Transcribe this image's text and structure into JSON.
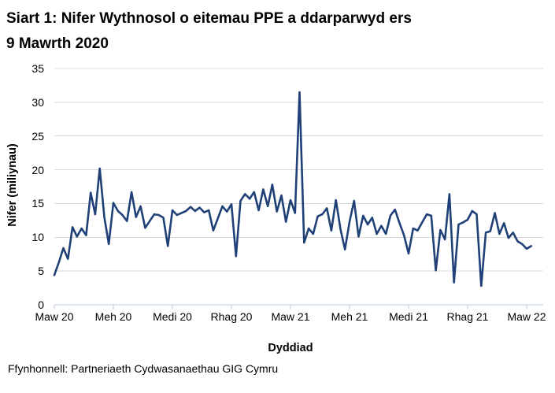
{
  "title_line1": "Siart 1: Nifer Wythnosol o eitemau PPE a ddarparwyd ers",
  "title_line2": "9 Mawrth 2020",
  "footer": "Ffynhonnell: Partneriaeth Cydwasanaethau GIG Cymru",
  "chart_data": {
    "type": "line",
    "title": "Siart 1: Nifer Wythnosol o eitemau PPE a ddarparwyd ers 9 Mawrth 2020",
    "xlabel": "Dyddiad",
    "ylabel": "Nifer (miliynau)",
    "ylim": [
      0,
      35
    ],
    "yticks": [
      0,
      5,
      10,
      15,
      20,
      25,
      30,
      35
    ],
    "xtick_labels": [
      "Maw 20",
      "Meh 20",
      "Medi 20",
      "Rhag 20",
      "Maw 21",
      "Meh 21",
      "Medi 21",
      "Rhag 21",
      "Maw 22"
    ],
    "xtick_week_positions": [
      0,
      13,
      26,
      39,
      52,
      65,
      78,
      91,
      104
    ],
    "grid": true,
    "legend": false,
    "values": [
      4.4,
      6.3,
      8.4,
      6.8,
      11.5,
      10.1,
      11.3,
      10.3,
      16.6,
      13.4,
      20.2,
      13.0,
      9.0,
      15.1,
      13.9,
      13.3,
      12.4,
      16.7,
      13.0,
      14.6,
      11.4,
      12.4,
      13.4,
      13.3,
      12.9,
      8.7,
      14.0,
      13.3,
      13.6,
      13.9,
      14.5,
      13.9,
      14.4,
      13.7,
      14.0,
      11.0,
      12.8,
      14.6,
      13.8,
      14.9,
      7.2,
      15.4,
      16.4,
      15.7,
      16.7,
      14.0,
      17.1,
      14.6,
      17.8,
      13.8,
      16.2,
      12.3,
      15.5,
      13.6,
      31.5,
      9.2,
      11.3,
      10.5,
      13.1,
      13.4,
      14.3,
      11.0,
      15.5,
      11.2,
      8.2,
      12.3,
      15.4,
      10.1,
      13.2,
      11.9,
      12.9,
      10.5,
      11.7,
      10.5,
      13.2,
      14.1,
      12.1,
      10.3,
      7.6,
      11.3,
      11.0,
      12.2,
      13.4,
      13.2,
      5.1,
      11.1,
      9.7,
      16.4,
      3.3,
      11.9,
      12.2,
      12.6,
      13.9,
      13.4,
      2.8,
      10.7,
      10.9,
      13.6,
      10.5,
      12.1,
      9.9,
      10.7,
      9.4,
      9.0,
      8.3,
      8.7
    ],
    "colors": {
      "line": "#1f4177",
      "grid": "#d9d9d9",
      "axis": "#b9cbdc",
      "text": "#000000",
      "background": "#ffffff"
    }
  }
}
